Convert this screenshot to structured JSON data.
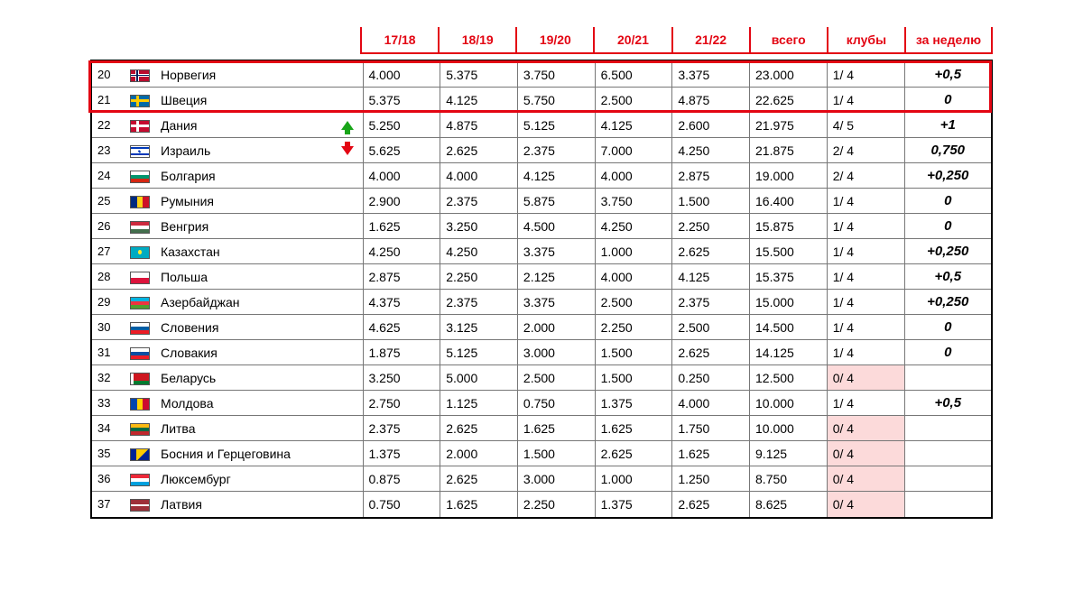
{
  "header_color": "#e30613",
  "columns": [
    "17/18",
    "18/19",
    "19/20",
    "20/21",
    "21/22",
    "всего",
    "клубы",
    "за неделю"
  ],
  "highlight": {
    "from_rank": 20,
    "to_rank": 21,
    "border_color": "#e30613"
  },
  "zero_clubs_bg": "#fcdada",
  "rows": [
    {
      "rank": 20,
      "country": "Норвегия",
      "flag": "NO",
      "trend": "",
      "s": [
        "4.000",
        "5.375",
        "3.750",
        "6.500",
        "3.375",
        "23.000"
      ],
      "clubs": "1/ 4",
      "clubs_zero": false,
      "week": "+0,5"
    },
    {
      "rank": 21,
      "country": "Швеция",
      "flag": "SE",
      "trend": "",
      "s": [
        "5.375",
        "4.125",
        "5.750",
        "2.500",
        "4.875",
        "22.625"
      ],
      "clubs": "1/ 4",
      "clubs_zero": false,
      "week": "0"
    },
    {
      "rank": 22,
      "country": "Дания",
      "flag": "DK",
      "trend": "up",
      "s": [
        "5.250",
        "4.875",
        "5.125",
        "4.125",
        "2.600",
        "21.975"
      ],
      "clubs": "4/ 5",
      "clubs_zero": false,
      "week": "+1"
    },
    {
      "rank": 23,
      "country": "Израиль",
      "flag": "IL",
      "trend": "down",
      "s": [
        "5.625",
        "2.625",
        "2.375",
        "7.000",
        "4.250",
        "21.875"
      ],
      "clubs": "2/ 4",
      "clubs_zero": false,
      "week": "0,750"
    },
    {
      "rank": 24,
      "country": "Болгария",
      "flag": "BG",
      "trend": "",
      "s": [
        "4.000",
        "4.000",
        "4.125",
        "4.000",
        "2.875",
        "19.000"
      ],
      "clubs": "2/ 4",
      "clubs_zero": false,
      "week": "+0,250"
    },
    {
      "rank": 25,
      "country": "Румыния",
      "flag": "RO",
      "trend": "",
      "s": [
        "2.900",
        "2.375",
        "5.875",
        "3.750",
        "1.500",
        "16.400"
      ],
      "clubs": "1/ 4",
      "clubs_zero": false,
      "week": "0"
    },
    {
      "rank": 26,
      "country": "Венгрия",
      "flag": "HU",
      "trend": "",
      "s": [
        "1.625",
        "3.250",
        "4.500",
        "4.250",
        "2.250",
        "15.875"
      ],
      "clubs": "1/ 4",
      "clubs_zero": false,
      "week": "0"
    },
    {
      "rank": 27,
      "country": "Казахстан",
      "flag": "KZ",
      "trend": "",
      "s": [
        "4.250",
        "4.250",
        "3.375",
        "1.000",
        "2.625",
        "15.500"
      ],
      "clubs": "1/ 4",
      "clubs_zero": false,
      "week": "+0,250"
    },
    {
      "rank": 28,
      "country": "Польша",
      "flag": "PL",
      "trend": "",
      "s": [
        "2.875",
        "2.250",
        "2.125",
        "4.000",
        "4.125",
        "15.375"
      ],
      "clubs": "1/ 4",
      "clubs_zero": false,
      "week": "+0,5"
    },
    {
      "rank": 29,
      "country": "Азербайджан",
      "flag": "AZ",
      "trend": "",
      "s": [
        "4.375",
        "2.375",
        "3.375",
        "2.500",
        "2.375",
        "15.000"
      ],
      "clubs": "1/ 4",
      "clubs_zero": false,
      "week": "+0,250"
    },
    {
      "rank": 30,
      "country": "Словения",
      "flag": "SI",
      "trend": "",
      "s": [
        "4.625",
        "3.125",
        "2.000",
        "2.250",
        "2.500",
        "14.500"
      ],
      "clubs": "1/ 4",
      "clubs_zero": false,
      "week": "0"
    },
    {
      "rank": 31,
      "country": "Словакия",
      "flag": "SK",
      "trend": "",
      "s": [
        "1.875",
        "5.125",
        "3.000",
        "1.500",
        "2.625",
        "14.125"
      ],
      "clubs": "1/ 4",
      "clubs_zero": false,
      "week": "0"
    },
    {
      "rank": 32,
      "country": "Беларусь",
      "flag": "BY",
      "trend": "",
      "s": [
        "3.250",
        "5.000",
        "2.500",
        "1.500",
        "0.250",
        "12.500"
      ],
      "clubs": "0/ 4",
      "clubs_zero": true,
      "week": ""
    },
    {
      "rank": 33,
      "country": "Молдова",
      "flag": "MD",
      "trend": "",
      "s": [
        "2.750",
        "1.125",
        "0.750",
        "1.375",
        "4.000",
        "10.000"
      ],
      "clubs": "1/ 4",
      "clubs_zero": false,
      "week": "+0,5"
    },
    {
      "rank": 34,
      "country": "Литва",
      "flag": "LT",
      "trend": "",
      "s": [
        "2.375",
        "2.625",
        "1.625",
        "1.625",
        "1.750",
        "10.000"
      ],
      "clubs": "0/ 4",
      "clubs_zero": true,
      "week": ""
    },
    {
      "rank": 35,
      "country": "Босния и Герцеговина",
      "flag": "BA",
      "trend": "",
      "s": [
        "1.375",
        "2.000",
        "1.500",
        "2.625",
        "1.625",
        "9.125"
      ],
      "clubs": "0/ 4",
      "clubs_zero": true,
      "week": ""
    },
    {
      "rank": 36,
      "country": "Люксембург",
      "flag": "LU",
      "trend": "",
      "s": [
        "0.875",
        "2.625",
        "3.000",
        "1.000",
        "1.250",
        "8.750"
      ],
      "clubs": "0/ 4",
      "clubs_zero": true,
      "week": ""
    },
    {
      "rank": 37,
      "country": "Латвия",
      "flag": "LV",
      "trend": "",
      "s": [
        "0.750",
        "1.625",
        "2.250",
        "1.375",
        "2.625",
        "8.625"
      ],
      "clubs": "0/ 4",
      "clubs_zero": true,
      "week": ""
    }
  ]
}
